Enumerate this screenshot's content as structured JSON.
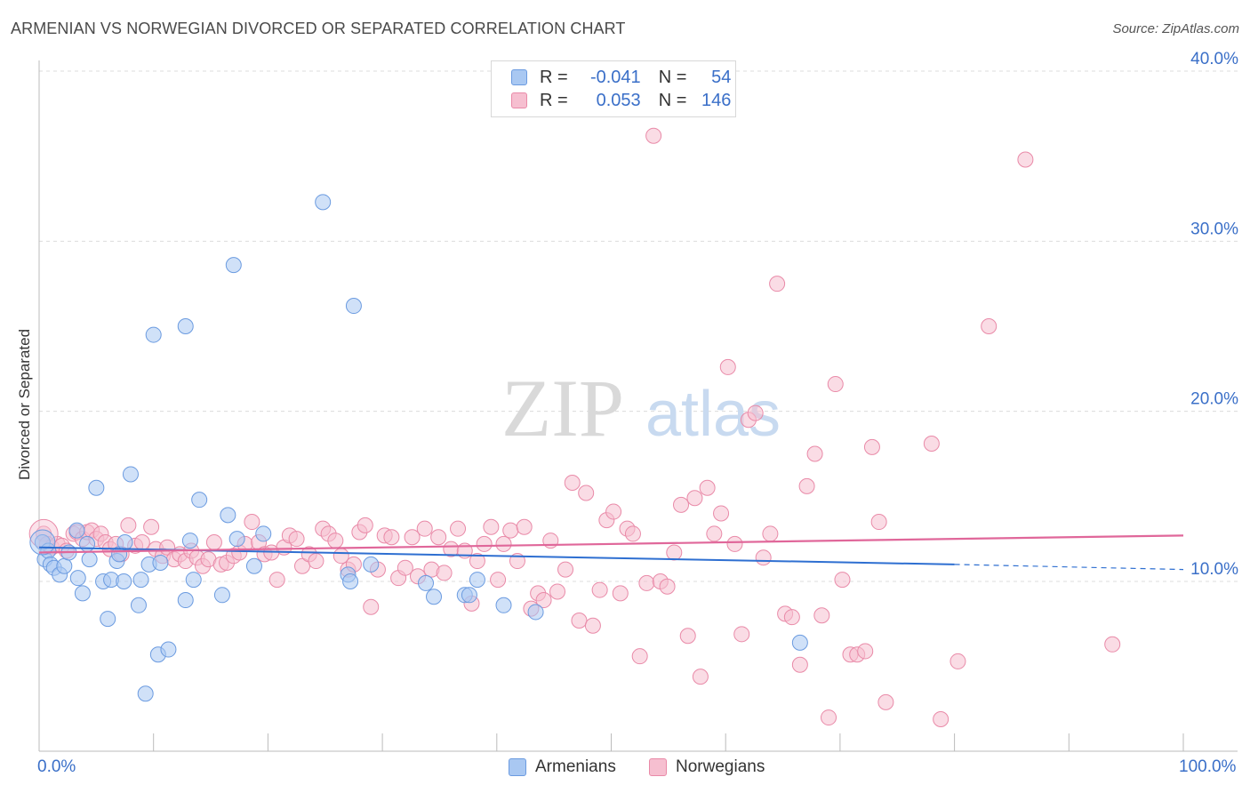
{
  "title": "ARMENIAN VS NORWEGIAN DIVORCED OR SEPARATED CORRELATION CHART",
  "source": "Source: ZipAtlas.com",
  "watermark": {
    "zip": "ZIP",
    "atlas": "atlas"
  },
  "legend": {
    "rows": [
      {
        "r_label": "R =",
        "r_value": "-0.041",
        "n_label": "N =",
        "n_value": "54",
        "color": "#a9c8f2",
        "stroke": "#6b9be0"
      },
      {
        "r_label": "R =",
        "r_value": "0.053",
        "n_label": "N =",
        "n_value": "146",
        "color": "#f6bfd0",
        "stroke": "#e98aa8"
      }
    ]
  },
  "bottom_legend": [
    "Armenians",
    "Norwegians"
  ],
  "chart_data": {
    "type": "scatter",
    "ylabel": "Divorced or Separated",
    "xlim": [
      0,
      100
    ],
    "ylim": [
      0,
      42
    ],
    "x_tick_labels": [
      "0.0%",
      "100.0%"
    ],
    "y_ticks": [
      {
        "value": 10,
        "label": "10.0%"
      },
      {
        "value": 20,
        "label": "20.0%"
      },
      {
        "value": 30,
        "label": "30.0%"
      },
      {
        "value": 40,
        "label": "40.0%"
      }
    ],
    "colors": {
      "armenians": "#6b9be0",
      "norwegians": "#e98aa8",
      "arm_line": "#2e6fd1",
      "nor_line": "#e0679a"
    },
    "series": [
      {
        "name": "Armenians",
        "trend": {
          "x0": 0,
          "y0": 12.0,
          "x1": 80,
          "y1": 11.0,
          "dash_x1": 100,
          "dash_y1": 10.7
        },
        "points": [
          [
            0.3,
            12.3
          ],
          [
            0.5,
            11.3
          ],
          [
            0.8,
            11.8
          ],
          [
            1.0,
            11.0
          ],
          [
            1.3,
            10.8
          ],
          [
            1.8,
            10.4
          ],
          [
            2.2,
            10.9
          ],
          [
            2.6,
            11.7
          ],
          [
            3.3,
            13.0
          ],
          [
            3.4,
            10.2
          ],
          [
            3.8,
            9.3
          ],
          [
            4.2,
            12.2
          ],
          [
            4.4,
            11.3
          ],
          [
            5.0,
            15.5
          ],
          [
            5.6,
            10.0
          ],
          [
            6.0,
            7.8
          ],
          [
            6.3,
            10.1
          ],
          [
            6.8,
            11.2
          ],
          [
            7.0,
            11.6
          ],
          [
            7.4,
            10.0
          ],
          [
            7.5,
            12.3
          ],
          [
            8.0,
            16.3
          ],
          [
            8.7,
            8.6
          ],
          [
            8.9,
            10.1
          ],
          [
            9.3,
            3.4
          ],
          [
            9.6,
            11.0
          ],
          [
            10.0,
            24.5
          ],
          [
            10.4,
            5.7
          ],
          [
            10.6,
            11.1
          ],
          [
            11.3,
            6.0
          ],
          [
            12.8,
            25.0
          ],
          [
            12.8,
            8.9
          ],
          [
            13.2,
            12.4
          ],
          [
            13.5,
            10.1
          ],
          [
            14.0,
            14.8
          ],
          [
            16.0,
            9.2
          ],
          [
            16.5,
            13.9
          ],
          [
            17.0,
            28.6
          ],
          [
            17.3,
            12.5
          ],
          [
            18.8,
            10.9
          ],
          [
            19.6,
            12.8
          ],
          [
            24.8,
            32.3
          ],
          [
            27.0,
            10.4
          ],
          [
            27.2,
            10.0
          ],
          [
            27.5,
            26.2
          ],
          [
            29.0,
            11.0
          ],
          [
            33.8,
            9.9
          ],
          [
            34.5,
            9.1
          ],
          [
            37.2,
            9.2
          ],
          [
            37.6,
            9.2
          ],
          [
            38.3,
            10.1
          ],
          [
            40.6,
            8.6
          ],
          [
            43.4,
            8.2
          ],
          [
            66.5,
            6.4
          ]
        ]
      },
      {
        "name": "Norwegians",
        "trend": {
          "x0": 0,
          "y0": 11.7,
          "x1": 100,
          "y1": 12.7
        },
        "points": [
          [
            0.4,
            12.8
          ],
          [
            0.7,
            12.2
          ],
          [
            1.1,
            12.0
          ],
          [
            1.6,
            12.2
          ],
          [
            2.0,
            12.1
          ],
          [
            2.4,
            11.8
          ],
          [
            3.0,
            12.8
          ],
          [
            3.3,
            12.9
          ],
          [
            3.8,
            12.5
          ],
          [
            4.2,
            12.9
          ],
          [
            4.6,
            13.0
          ],
          [
            5.0,
            12.5
          ],
          [
            5.4,
            12.8
          ],
          [
            5.8,
            12.3
          ],
          [
            6.2,
            11.9
          ],
          [
            6.7,
            12.2
          ],
          [
            7.2,
            11.6
          ],
          [
            7.8,
            13.3
          ],
          [
            8.4,
            12.1
          ],
          [
            9.0,
            12.3
          ],
          [
            9.8,
            13.2
          ],
          [
            10.2,
            11.9
          ],
          [
            10.8,
            11.5
          ],
          [
            11.2,
            12.0
          ],
          [
            11.8,
            11.3
          ],
          [
            12.3,
            11.6
          ],
          [
            12.8,
            11.2
          ],
          [
            13.3,
            11.8
          ],
          [
            13.8,
            11.4
          ],
          [
            14.3,
            10.9
          ],
          [
            14.8,
            11.3
          ],
          [
            15.3,
            12.3
          ],
          [
            15.9,
            11.0
          ],
          [
            16.4,
            11.1
          ],
          [
            17.0,
            11.5
          ],
          [
            17.5,
            11.7
          ],
          [
            18.0,
            12.2
          ],
          [
            18.6,
            13.5
          ],
          [
            19.2,
            12.3
          ],
          [
            19.7,
            11.6
          ],
          [
            20.3,
            11.7
          ],
          [
            20.8,
            10.1
          ],
          [
            21.4,
            12.0
          ],
          [
            21.9,
            12.7
          ],
          [
            22.5,
            12.5
          ],
          [
            23.0,
            10.9
          ],
          [
            23.6,
            11.6
          ],
          [
            24.2,
            11.2
          ],
          [
            24.8,
            13.1
          ],
          [
            25.3,
            12.8
          ],
          [
            25.9,
            12.4
          ],
          [
            26.4,
            11.5
          ],
          [
            27.0,
            10.7
          ],
          [
            27.5,
            11.0
          ],
          [
            28.0,
            12.9
          ],
          [
            28.5,
            13.3
          ],
          [
            29.0,
            8.5
          ],
          [
            29.6,
            10.7
          ],
          [
            30.2,
            12.7
          ],
          [
            30.8,
            12.6
          ],
          [
            31.4,
            10.2
          ],
          [
            32.0,
            10.8
          ],
          [
            32.6,
            12.6
          ],
          [
            33.1,
            10.3
          ],
          [
            33.7,
            13.1
          ],
          [
            34.3,
            10.7
          ],
          [
            34.9,
            12.6
          ],
          [
            35.4,
            10.5
          ],
          [
            36.0,
            11.9
          ],
          [
            36.6,
            13.1
          ],
          [
            37.2,
            11.8
          ],
          [
            37.8,
            8.7
          ],
          [
            38.3,
            11.2
          ],
          [
            38.9,
            12.2
          ],
          [
            39.5,
            13.2
          ],
          [
            40.1,
            10.1
          ],
          [
            40.6,
            12.2
          ],
          [
            41.2,
            13.0
          ],
          [
            41.8,
            11.2
          ],
          [
            42.4,
            13.2
          ],
          [
            43.0,
            8.4
          ],
          [
            43.6,
            9.3
          ],
          [
            44.1,
            8.9
          ],
          [
            44.7,
            12.4
          ],
          [
            45.3,
            9.4
          ],
          [
            46.0,
            10.7
          ],
          [
            46.6,
            15.8
          ],
          [
            47.2,
            7.7
          ],
          [
            47.8,
            15.2
          ],
          [
            48.4,
            7.4
          ],
          [
            49.0,
            9.5
          ],
          [
            49.6,
            13.6
          ],
          [
            50.2,
            14.1
          ],
          [
            50.8,
            9.3
          ],
          [
            51.4,
            13.1
          ],
          [
            51.9,
            12.8
          ],
          [
            52.5,
            5.6
          ],
          [
            53.1,
            9.9
          ],
          [
            53.7,
            36.2
          ],
          [
            54.3,
            10.0
          ],
          [
            54.9,
            9.7
          ],
          [
            55.5,
            11.7
          ],
          [
            56.1,
            14.5
          ],
          [
            56.7,
            6.8
          ],
          [
            57.3,
            14.9
          ],
          [
            57.8,
            4.4
          ],
          [
            58.4,
            15.5
          ],
          [
            59.0,
            12.8
          ],
          [
            59.6,
            14.0
          ],
          [
            60.2,
            22.6
          ],
          [
            60.8,
            12.2
          ],
          [
            61.4,
            6.9
          ],
          [
            62.0,
            19.5
          ],
          [
            62.6,
            19.9
          ],
          [
            63.3,
            11.4
          ],
          [
            63.9,
            12.8
          ],
          [
            64.5,
            27.5
          ],
          [
            65.2,
            8.1
          ],
          [
            65.8,
            7.9
          ],
          [
            66.5,
            5.1
          ],
          [
            67.1,
            15.6
          ],
          [
            67.8,
            17.5
          ],
          [
            68.4,
            8.0
          ],
          [
            69.0,
            2.0
          ],
          [
            69.6,
            21.6
          ],
          [
            70.2,
            10.1
          ],
          [
            70.9,
            5.7
          ],
          [
            71.5,
            5.7
          ],
          [
            72.2,
            5.9
          ],
          [
            72.8,
            17.9
          ],
          [
            73.4,
            13.5
          ],
          [
            74.0,
            2.9
          ],
          [
            78.0,
            18.1
          ],
          [
            78.8,
            1.9
          ],
          [
            80.3,
            5.3
          ],
          [
            83.0,
            25.0
          ],
          [
            86.2,
            34.8
          ],
          [
            93.8,
            6.3
          ]
        ]
      }
    ]
  }
}
